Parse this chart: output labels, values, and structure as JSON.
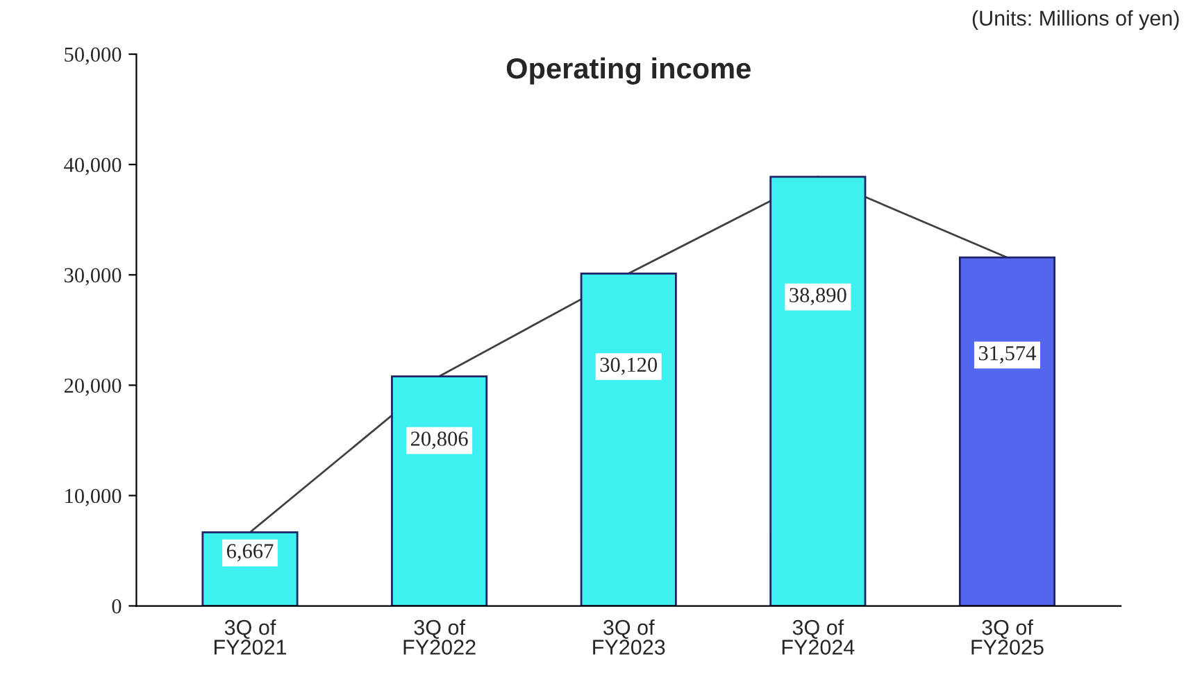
{
  "chart_data": {
    "type": "bar",
    "title": "Operating income",
    "categories": [
      "3Q of\nFY2021",
      "3Q of\nFY2022",
      "3Q of\nFY2023",
      "3Q of\nFY2024",
      "3Q of\nFY2025"
    ],
    "series": [
      {
        "colors": [
          "#3ff0f0",
          "#3ff0f0",
          "#3ff0f0",
          "#3ff0f0",
          "#5566ee"
        ],
        "values": [
          6667,
          20806,
          30120,
          38890,
          31574
        ],
        "value_labels": [
          "6,667",
          "20,806",
          "30,120",
          "38,890",
          "31,574"
        ]
      },
      {
        "type": "line",
        "color": "#404040",
        "values": [
          6667,
          20806,
          30120,
          38890,
          31574
        ]
      }
    ],
    "ylim": [
      0,
      50000
    ],
    "yticks": [
      {
        "value": 0,
        "label": "0"
      },
      {
        "value": 10000,
        "label": "10,000"
      },
      {
        "value": 20000,
        "label": "20,000"
      },
      {
        "value": 30000,
        "label": "30,000"
      },
      {
        "value": 40000,
        "label": "40,000"
      },
      {
        "value": 50000,
        "label": "50,000"
      }
    ],
    "grid": false,
    "legend": false,
    "marker": "none",
    "annotations": [
      "(Units: Millions of yen)"
    ]
  }
}
